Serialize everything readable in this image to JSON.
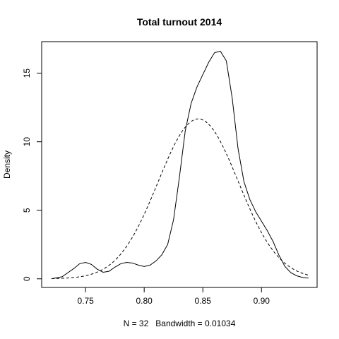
{
  "chart_data": {
    "type": "line",
    "title": "Total turnout 2014",
    "xlabel": "N = 32   Bandwidth = 0.01034",
    "ylabel": "Density",
    "xlim": [
      0.7126,
      0.9474
    ],
    "ylim": [
      -0.63,
      17.3
    ],
    "x_ticks": [
      0.75,
      0.8,
      0.85,
      0.9
    ],
    "x_tick_labels": [
      "0.75",
      "0.80",
      "0.85",
      "0.90"
    ],
    "y_ticks": [
      0,
      5,
      10,
      15
    ],
    "y_tick_labels": [
      "0",
      "5",
      "10",
      "15"
    ],
    "grid": false,
    "legend": "none",
    "series": [
      {
        "style": "solid",
        "x": [
          0.721,
          0.73,
          0.74,
          0.745,
          0.75,
          0.755,
          0.76,
          0.765,
          0.77,
          0.775,
          0.78,
          0.785,
          0.79,
          0.795,
          0.8,
          0.805,
          0.81,
          0.815,
          0.82,
          0.825,
          0.83,
          0.835,
          0.84,
          0.845,
          0.85,
          0.855,
          0.86,
          0.865,
          0.87,
          0.875,
          0.88,
          0.885,
          0.89,
          0.895,
          0.9,
          0.905,
          0.91,
          0.915,
          0.92,
          0.925,
          0.93,
          0.935,
          0.94
        ],
        "y": [
          0.0,
          0.15,
          0.75,
          1.1,
          1.2,
          1.05,
          0.7,
          0.48,
          0.55,
          0.85,
          1.1,
          1.2,
          1.15,
          1.0,
          0.9,
          1.0,
          1.3,
          1.75,
          2.5,
          4.3,
          7.4,
          10.8,
          12.8,
          14.0,
          14.9,
          15.8,
          16.5,
          16.6,
          15.9,
          13.2,
          9.5,
          7.1,
          5.8,
          4.9,
          4.2,
          3.5,
          2.7,
          1.7,
          0.9,
          0.45,
          0.22,
          0.1,
          0.05
        ]
      },
      {
        "style": "dashed",
        "mean": 0.8461,
        "sd": 0.0342,
        "x_range": [
          0.721,
          0.94
        ]
      }
    ]
  }
}
